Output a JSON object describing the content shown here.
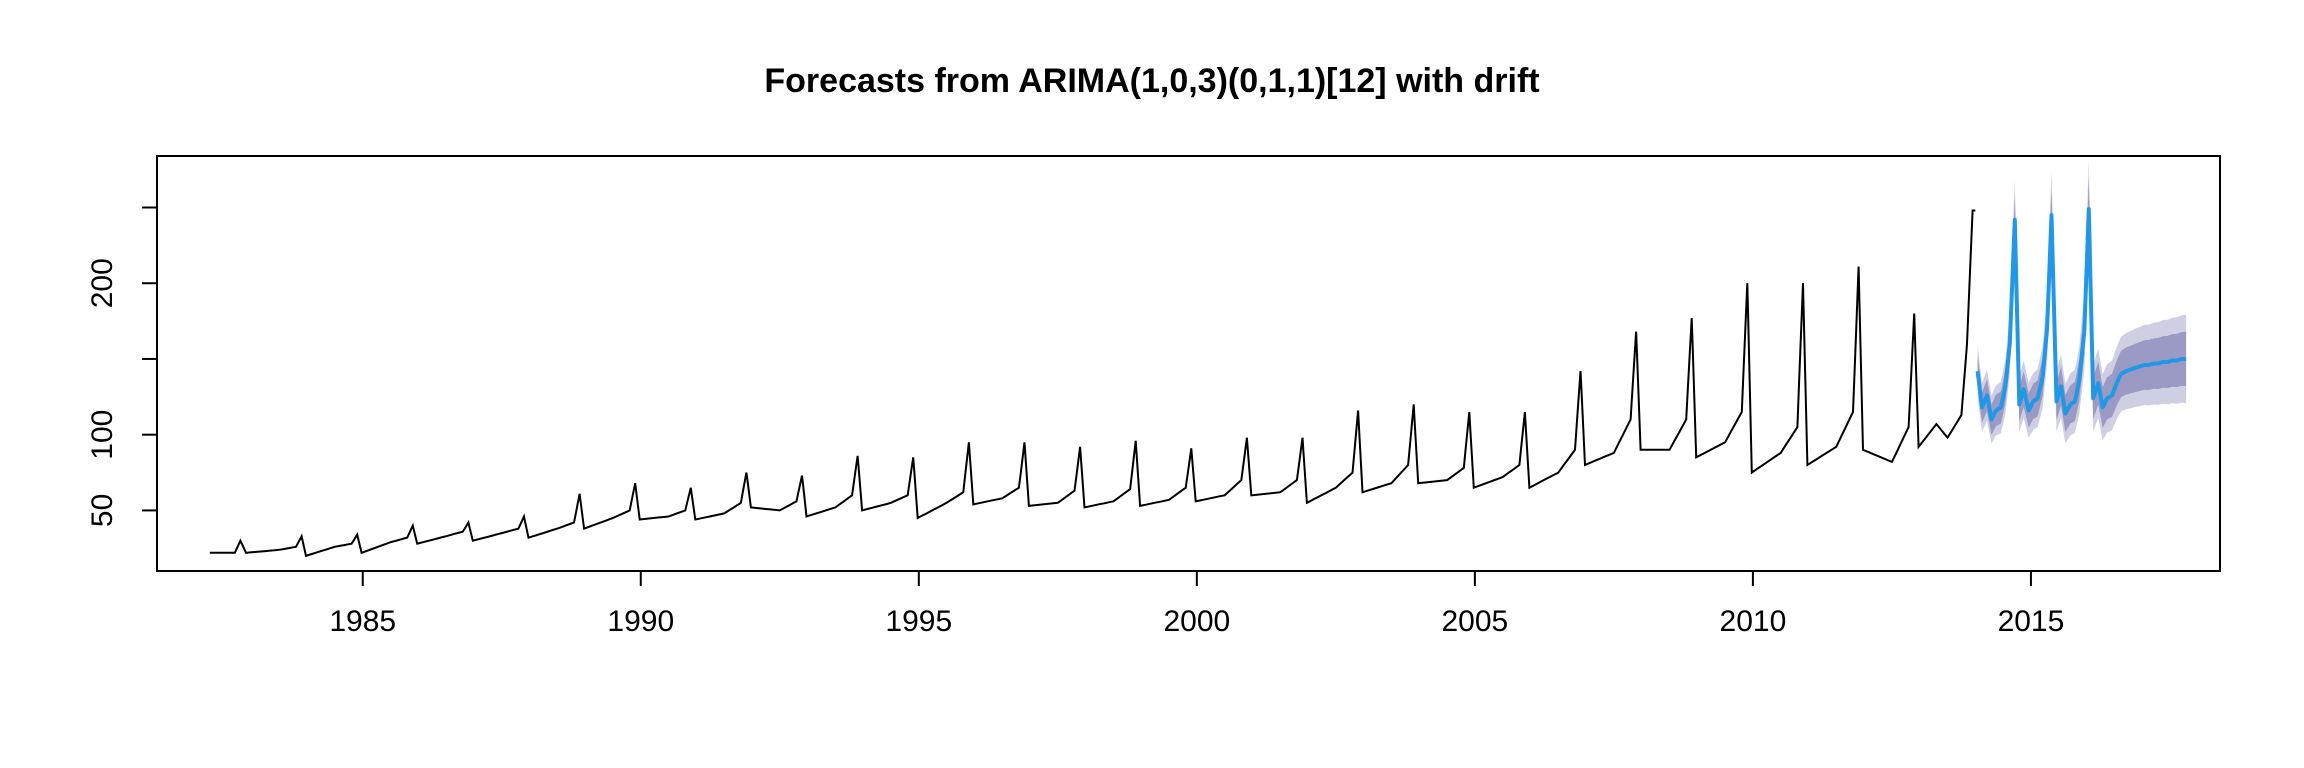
{
  "chart_data": {
    "type": "line",
    "title": "Forecasts from ARIMA(1,0,3)(0,1,1)[12] with drift",
    "xlabel": "",
    "ylabel": "",
    "xlim": [
      1981.3,
      2018.4
    ],
    "ylim": [
      10,
      284
    ],
    "x_ticks": [
      1985,
      1990,
      1995,
      2000,
      2005,
      2010,
      2015
    ],
    "x_tick_labels": [
      "1985",
      "1990",
      "1995",
      "2000",
      "2005",
      "2010",
      "2015"
    ],
    "y_ticks": [
      50,
      100,
      150,
      200,
      250
    ],
    "y_tick_labels": [
      "50",
      "100",
      "",
      "200",
      ""
    ],
    "grid": false,
    "legend": "none",
    "colors": {
      "history": "#000000",
      "forecast": "#2297E6",
      "band80": "#9A9AC4",
      "band95": "#CFCFE3"
    },
    "history_start": 1982.25,
    "history_freq": 12,
    "history_end": 2014.0,
    "history_anchors": [
      [
        1982.25,
        22
      ],
      [
        1982.7,
        22
      ],
      [
        1982.8,
        30
      ],
      [
        1982.9,
        22
      ],
      [
        1983.5,
        24
      ],
      [
        1983.8,
        26
      ],
      [
        1983.9,
        33
      ],
      [
        1983.98,
        20
      ],
      [
        1984.5,
        26
      ],
      [
        1984.8,
        28
      ],
      [
        1984.9,
        34
      ],
      [
        1984.98,
        22
      ],
      [
        1985.5,
        29
      ],
      [
        1985.8,
        32
      ],
      [
        1985.9,
        40
      ],
      [
        1985.98,
        28
      ],
      [
        1986.5,
        33
      ],
      [
        1986.8,
        36
      ],
      [
        1986.9,
        42
      ],
      [
        1986.98,
        30
      ],
      [
        1987.5,
        35
      ],
      [
        1987.8,
        38
      ],
      [
        1987.9,
        46
      ],
      [
        1987.98,
        32
      ],
      [
        1988.5,
        38
      ],
      [
        1988.8,
        42
      ],
      [
        1988.9,
        61
      ],
      [
        1988.98,
        38
      ],
      [
        1989.5,
        45
      ],
      [
        1989.8,
        50
      ],
      [
        1989.9,
        68
      ],
      [
        1989.98,
        44
      ],
      [
        1990.5,
        46
      ],
      [
        1990.8,
        50
      ],
      [
        1990.9,
        65
      ],
      [
        1990.98,
        44
      ],
      [
        1991.5,
        48
      ],
      [
        1991.8,
        55
      ],
      [
        1991.9,
        75
      ],
      [
        1991.98,
        52
      ],
      [
        1992.5,
        50
      ],
      [
        1992.8,
        56
      ],
      [
        1992.9,
        73
      ],
      [
        1992.98,
        46
      ],
      [
        1993.5,
        52
      ],
      [
        1993.8,
        60
      ],
      [
        1993.9,
        86
      ],
      [
        1993.98,
        50
      ],
      [
        1994.5,
        55
      ],
      [
        1994.8,
        60
      ],
      [
        1994.9,
        85
      ],
      [
        1994.98,
        45
      ],
      [
        1995.5,
        55
      ],
      [
        1995.8,
        62
      ],
      [
        1995.9,
        95
      ],
      [
        1995.98,
        54
      ],
      [
        1996.5,
        58
      ],
      [
        1996.8,
        65
      ],
      [
        1996.9,
        95
      ],
      [
        1996.98,
        53
      ],
      [
        1997.5,
        55
      ],
      [
        1997.8,
        63
      ],
      [
        1997.9,
        92
      ],
      [
        1997.98,
        52
      ],
      [
        1998.5,
        56
      ],
      [
        1998.8,
        64
      ],
      [
        1998.9,
        96
      ],
      [
        1998.98,
        53
      ],
      [
        1999.5,
        57
      ],
      [
        1999.8,
        65
      ],
      [
        1999.9,
        91
      ],
      [
        1999.98,
        56
      ],
      [
        2000.5,
        60
      ],
      [
        2000.8,
        70
      ],
      [
        2000.9,
        98
      ],
      [
        2000.98,
        60
      ],
      [
        2001.5,
        62
      ],
      [
        2001.8,
        70
      ],
      [
        2001.9,
        98
      ],
      [
        2001.98,
        55
      ],
      [
        2002.5,
        65
      ],
      [
        2002.8,
        75
      ],
      [
        2002.9,
        116
      ],
      [
        2002.98,
        62
      ],
      [
        2003.5,
        68
      ],
      [
        2003.8,
        80
      ],
      [
        2003.9,
        120
      ],
      [
        2003.98,
        68
      ],
      [
        2004.5,
        70
      ],
      [
        2004.8,
        78
      ],
      [
        2004.9,
        115
      ],
      [
        2004.98,
        65
      ],
      [
        2005.5,
        72
      ],
      [
        2005.8,
        80
      ],
      [
        2005.9,
        115
      ],
      [
        2005.98,
        65
      ],
      [
        2006.5,
        75
      ],
      [
        2006.8,
        90
      ],
      [
        2006.9,
        142
      ],
      [
        2006.98,
        80
      ],
      [
        2007.5,
        88
      ],
      [
        2007.8,
        110
      ],
      [
        2007.9,
        168
      ],
      [
        2007.98,
        90
      ],
      [
        2008.5,
        90
      ],
      [
        2008.8,
        110
      ],
      [
        2008.9,
        177
      ],
      [
        2008.98,
        85
      ],
      [
        2009.5,
        95
      ],
      [
        2009.8,
        115
      ],
      [
        2009.9,
        200
      ],
      [
        2009.98,
        75
      ],
      [
        2010.5,
        88
      ],
      [
        2010.8,
        105
      ],
      [
        2010.9,
        200
      ],
      [
        2010.98,
        80
      ],
      [
        2011.5,
        92
      ],
      [
        2011.8,
        115
      ],
      [
        2011.9,
        211
      ],
      [
        2011.98,
        90
      ],
      [
        2012.5,
        82
      ],
      [
        2012.8,
        105
      ],
      [
        2012.9,
        180
      ],
      [
        2012.98,
        92
      ],
      [
        2013.3,
        107
      ],
      [
        2013.5,
        98
      ],
      [
        2013.75,
        113
      ],
      [
        2013.85,
        160
      ],
      [
        2013.95,
        248
      ]
    ],
    "forecast_x": [
      2014.04,
      2014.12,
      2014.21,
      2014.29,
      2014.37,
      2014.46,
      2014.54,
      2014.62,
      2014.71,
      2014.79,
      2014.87,
      2014.96,
      2015.04,
      2015.12,
      2015.21,
      2015.29,
      2015.37,
      2015.46,
      2015.54,
      2015.62,
      2015.71,
      2015.79,
      2015.87,
      2015.96,
      2016.04,
      2016.12,
      2016.21,
      2016.29,
      2016.37,
      2016.46,
      2016.54,
      2016.62,
      2016.71,
      2016.79,
      2016.87,
      2016.96,
      2017.04,
      2017.12,
      2017.21,
      2017.29,
      2017.37,
      2017.46,
      2017.54,
      2017.62,
      2017.71,
      2017.79
    ],
    "forecast_values": [
      142,
      118,
      126,
      110,
      116,
      118,
      132,
      160,
      242,
      120,
      130,
      116,
      122,
      124,
      138,
      170,
      245,
      122,
      132,
      114,
      120,
      122,
      136,
      168,
      249,
      124,
      134,
      118,
      124,
      126,
      134,
      140,
      142,
      143,
      144,
      145,
      146,
      146,
      147,
      147,
      148,
      148,
      149,
      149,
      150,
      150
    ],
    "band80_halfwidth_start": 10,
    "band80_halfwidth_end": 16,
    "band95_halfwidth_start": 16,
    "band95_halfwidth_end": 26
  }
}
